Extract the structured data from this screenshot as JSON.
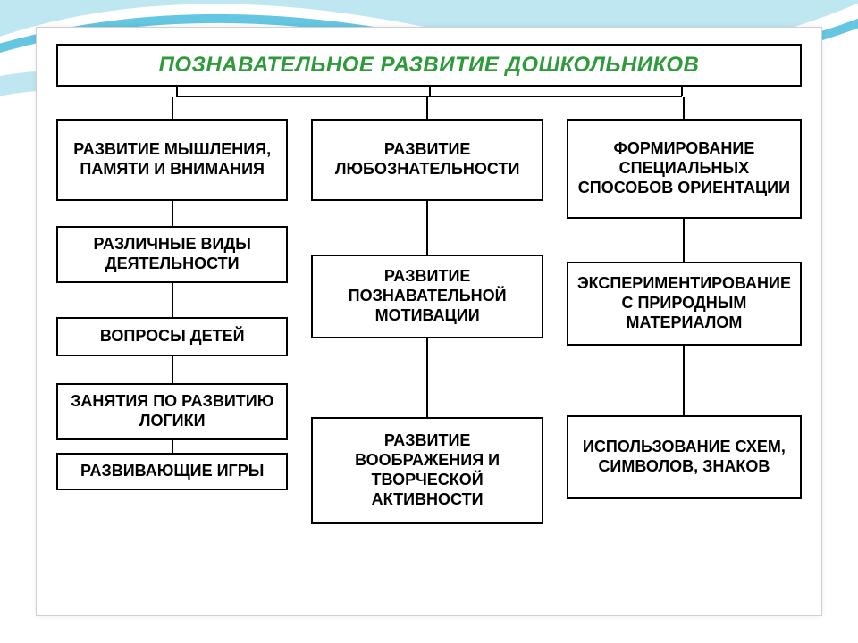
{
  "title": {
    "text": "ПОЗНАВАТЕЛЬНОЕ РАЗВИТИЕ ДОШКОЛЬНИКОВ",
    "color": "#2e9a3a",
    "border_color": "#000000",
    "font_size": 24,
    "font_style": "italic",
    "font_weight": 900
  },
  "diagram": {
    "type": "tree",
    "node_border_color": "#000000",
    "node_bg": "#ffffff",
    "node_text_color": "#000000",
    "node_font_size": 18,
    "connector_color": "#000000",
    "connector_width": 2
  },
  "columns": [
    {
      "nodes": [
        {
          "label": "РАЗВИТИЕ МЫШЛЕНИЯ, ПАМЯТИ И ВНИМАНИЯ",
          "min_h": 92
        },
        {
          "label": "РАЗЛИЧНЫЕ ВИДЫ ДЕЯТЕЛЬНОСТИ",
          "min_h": 62
        },
        {
          "label": "ВОПРОСЫ ДЕТЕЙ",
          "min_h": 44
        },
        {
          "label": "ЗАНЯТИЯ ПО РАЗВИТИЮ ЛОГИКИ",
          "min_h": 62
        },
        {
          "label": "РАЗВИВАЮЩИЕ ИГРЫ",
          "min_h": 40
        }
      ],
      "gaps": [
        24,
        28,
        38,
        30,
        14
      ]
    },
    {
      "nodes": [
        {
          "label": "РАЗВИТИЕ ЛЮБОЗНАТЕЛЬНОСТИ",
          "min_h": 92
        },
        {
          "label": "РАЗВИТИЕ ПОЗНАВАТЕЛЬНОЙ МОТИВАЦИИ",
          "min_h": 94
        },
        {
          "label": "РАЗВИТИЕ ВООБРАЖЕНИЯ И ТВОРЧЕСКОЙ АКТИВНОСТИ",
          "min_h": 120
        }
      ],
      "gaps": [
        24,
        60,
        88
      ]
    },
    {
      "nodes": [
        {
          "label": "ФОРМИРОВАНИЕ СПЕЦИАЛЬНЫХ СПОСОБОВ ОРИЕНТАЦИИ",
          "min_h": 112
        },
        {
          "label": "ЭКСПЕРИМЕНТИРОВАНИЕ С ПРИРОДНЫМ МАТЕРИАЛОМ",
          "min_h": 94
        },
        {
          "label": "ИСПОЛЬЗОВАНИЕ СХЕМ, СИМВОЛОВ, ЗНАКОВ",
          "min_h": 94
        }
      ],
      "gaps": [
        24,
        48,
        78
      ]
    }
  ],
  "decor": {
    "swoosh_fill": "#bfe7f2",
    "swoosh_edge": "#53c0de"
  }
}
